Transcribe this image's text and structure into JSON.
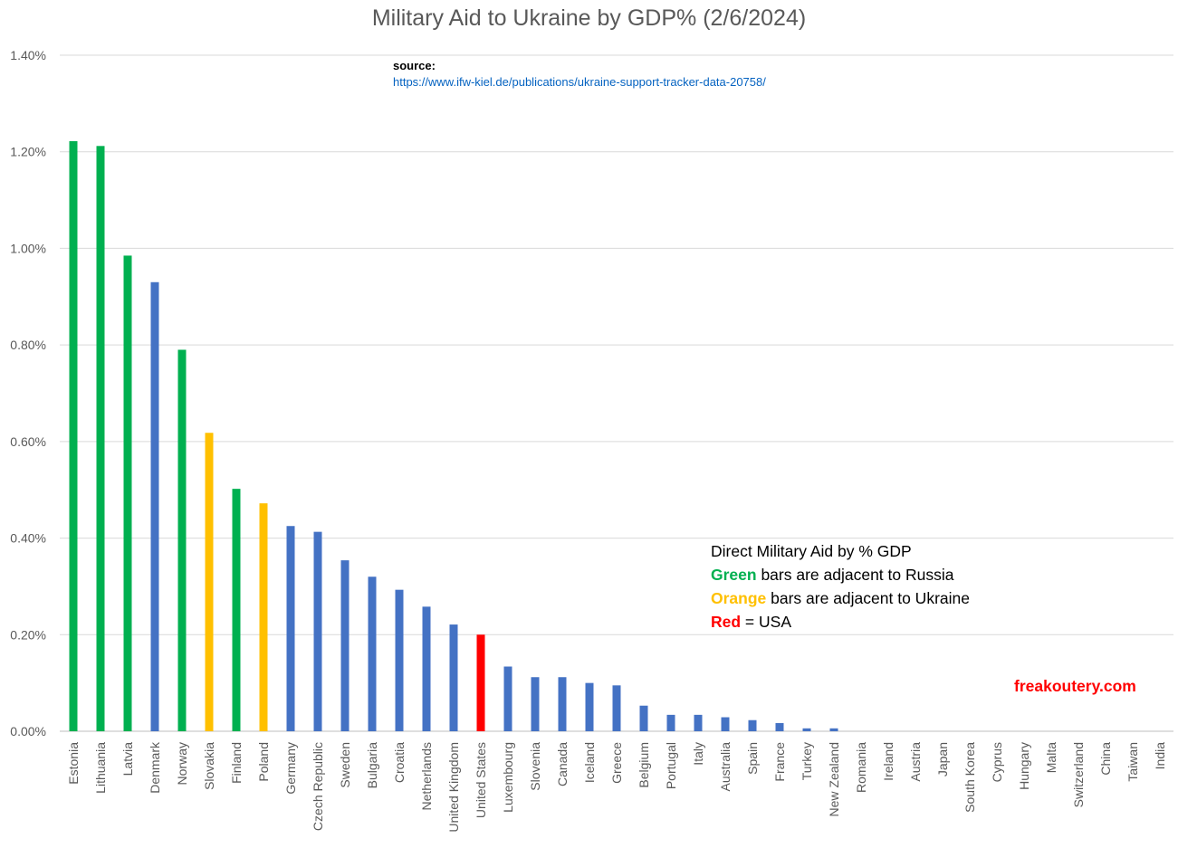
{
  "chart_data": {
    "type": "bar",
    "title": "Military Aid to Ukraine by GDP% (2/6/2024)",
    "ylim": [
      0,
      0.014
    ],
    "y_ticks": [
      "0.00%",
      "0.20%",
      "0.40%",
      "0.60%",
      "0.80%",
      "1.00%",
      "1.20%",
      "1.40%"
    ],
    "grid": true,
    "categories": [
      "Estonia",
      "Lithuania",
      "Latvia",
      "Denmark",
      "Norway",
      "Slovakia",
      "Finland",
      "Poland",
      "Germany",
      "Czech Republic",
      "Sweden",
      "Bulgaria",
      "Croatia",
      "Netherlands",
      "United Kingdom",
      "United States",
      "Luxembourg",
      "Slovenia",
      "Canada",
      "Iceland",
      "Greece",
      "Belgium",
      "Portugal",
      "Italy",
      "Australia",
      "Spain",
      "France",
      "Turkey",
      "New Zealand",
      "Romania",
      "Ireland",
      "Austria",
      "Japan",
      "South Korea",
      "Cyprus",
      "Hungary",
      "Malta",
      "Switzerland",
      "China",
      "Taiwan",
      "India"
    ],
    "values": [
      0.01222,
      0.01212,
      0.00985,
      0.0093,
      0.0079,
      0.00618,
      0.00502,
      0.00472,
      0.00425,
      0.00413,
      0.00354,
      0.0032,
      0.00293,
      0.00258,
      0.00221,
      0.002,
      0.00134,
      0.00112,
      0.00112,
      0.001,
      0.00095,
      0.00053,
      0.00034,
      0.00034,
      0.00029,
      0.00023,
      0.00017,
      6e-05,
      6e-05,
      0,
      0,
      0,
      0,
      0,
      0,
      0,
      0,
      0,
      0,
      0,
      0
    ],
    "bar_groups": [
      "green",
      "green",
      "green",
      "blue",
      "green",
      "orange",
      "green",
      "orange",
      "blue",
      "blue",
      "blue",
      "blue",
      "blue",
      "blue",
      "blue",
      "red",
      "blue",
      "blue",
      "blue",
      "blue",
      "blue",
      "blue",
      "blue",
      "blue",
      "blue",
      "blue",
      "blue",
      "blue",
      "blue",
      "blue",
      "blue",
      "blue",
      "blue",
      "blue",
      "blue",
      "blue",
      "blue",
      "blue",
      "blue",
      "blue",
      "blue"
    ],
    "colors": {
      "green": "#00b050",
      "orange": "#ffc000",
      "red": "#ff0000",
      "blue": "#4472c4"
    }
  },
  "source": {
    "label": "source:",
    "url": "https://www.ifw-kiel.de/publications/ukraine-support-tracker-data-20758/"
  },
  "legend": {
    "line1": "Direct Military Aid by % GDP",
    "green_word": "Green",
    "green_rest": " bars are adjacent to Russia",
    "orange_word": "Orange",
    "orange_rest": " bars are adjacent to Ukraine",
    "red_word": "Red",
    "red_rest": " = USA"
  },
  "watermark": "freakoutery.com"
}
